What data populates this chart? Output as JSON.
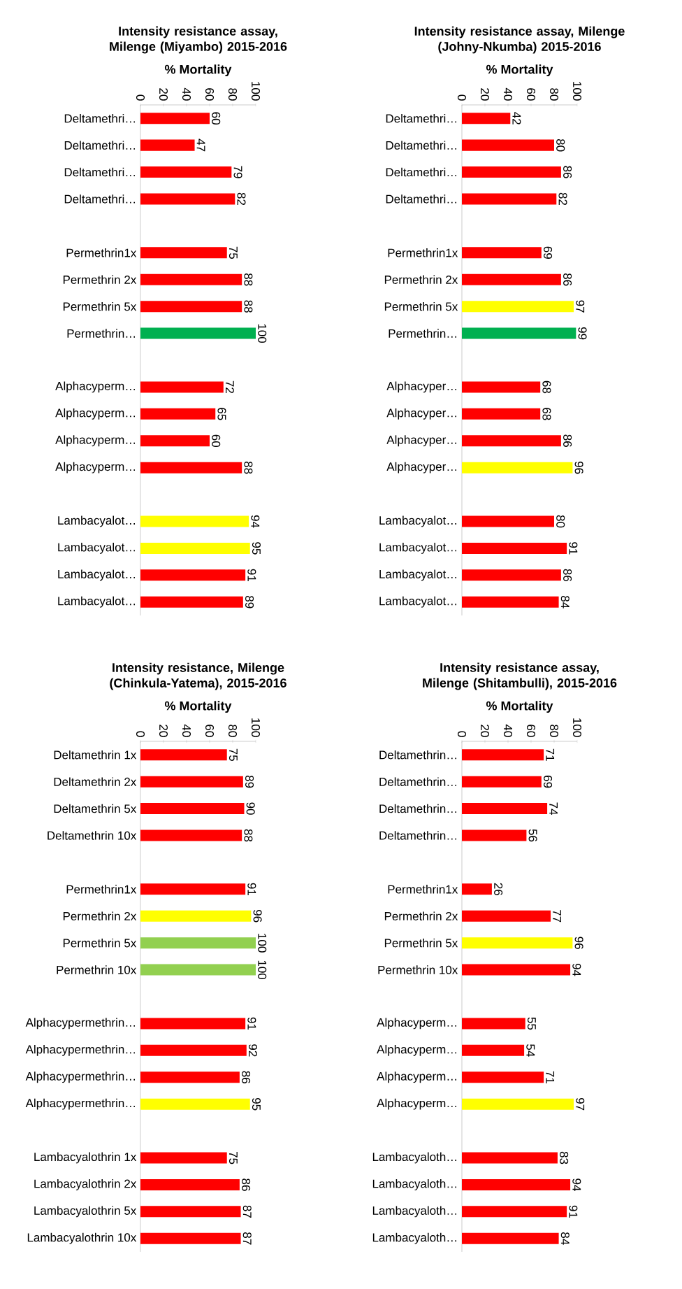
{
  "chart_data": [
    {
      "type": "bar",
      "orientation": "horizontal",
      "title": "Intensity resistance assay, Milenge (Miyambo) 2015-2016",
      "xlabel": "% Mortality",
      "categories": [
        "Deltamethri…",
        "Deltamethri…",
        "Deltamethri…",
        "Deltamethri…",
        null,
        "Permethrin1x",
        "Permethrin 2x",
        "Permethrin 5x",
        "Permethrin…",
        null,
        "Alphacyperm…",
        "Alphacyperm…",
        "Alphacyperm…",
        "Alphacyperm…",
        null,
        "Lambacyalot…",
        "Lambacyalot…",
        "Lambacyalot…",
        "Lambacyalot…"
      ],
      "values": [
        60,
        47,
        79,
        82,
        null,
        75,
        88,
        88,
        100,
        null,
        72,
        65,
        60,
        88,
        null,
        94,
        95,
        91,
        89
      ],
      "colors": [
        "#ff0000",
        "#ff0000",
        "#ff0000",
        "#ff0000",
        "#ff0000",
        "#ff0000",
        "#ff0000",
        "#ff0000",
        "#00b050",
        "#ff0000",
        "#ff0000",
        "#ff0000",
        "#ff0000",
        "#ff0000",
        "#ff0000",
        "#ffff00",
        "#ffff00",
        "#ff0000",
        "#ff0000"
      ],
      "xlim": [
        0,
        100
      ],
      "xticks": [
        0,
        20,
        40,
        60,
        80,
        100
      ],
      "data_labels": true
    },
    {
      "type": "bar",
      "orientation": "horizontal",
      "title": "Intensity resistance assay, Milenge (Johny-Nkumba) 2015-2016",
      "xlabel": "% Mortality",
      "categories": [
        "Deltamethri…",
        "Deltamethri…",
        "Deltamethri…",
        "Deltamethri…",
        null,
        "Permethrin1x",
        "Permethrin 2x",
        "Permethrin 5x",
        "Permethrin…",
        null,
        "Alphacyper…",
        "Alphacyper…",
        "Alphacyper…",
        "Alphacyper…",
        null,
        "Lambacyalot…",
        "Lambacyalot…",
        "Lambacyalot…",
        "Lambacyalot…"
      ],
      "values": [
        42,
        80,
        86,
        82,
        null,
        69,
        86,
        97,
        99,
        null,
        68,
        68,
        86,
        96,
        null,
        80,
        91,
        86,
        84
      ],
      "colors": [
        "#ff0000",
        "#ff0000",
        "#ff0000",
        "#ff0000",
        "#ff0000",
        "#ff0000",
        "#ff0000",
        "#ffff00",
        "#00b050",
        "#ff0000",
        "#ff0000",
        "#ff0000",
        "#ff0000",
        "#ffff00",
        "#ff0000",
        "#ff0000",
        "#ff0000",
        "#ff0000",
        "#ff0000"
      ],
      "xlim": [
        0,
        100
      ],
      "xticks": [
        0,
        20,
        40,
        60,
        80,
        100
      ],
      "data_labels": true
    },
    {
      "type": "bar",
      "orientation": "horizontal",
      "title": "Intensity resistance, Milenge (Chinkula-Yatema), 2015-2016",
      "xlabel": "% Mortality",
      "categories": [
        "Deltamethrin 1x",
        "Deltamethrin 2x",
        "Deltamethrin 5x",
        "Deltamethrin 10x",
        null,
        "Permethrin1x",
        "Permethrin 2x",
        "Permethrin 5x",
        "Permethrin 10x",
        null,
        "Alphacypermethrin…",
        "Alphacypermethrin…",
        "Alphacypermethrin…",
        "Alphacypermethrin…",
        null,
        "Lambacyalothrin 1x",
        "Lambacyalothrin 2x",
        "Lambacyalothrin 5x",
        "Lambacyalothrin 10x"
      ],
      "values": [
        75,
        89,
        90,
        88,
        null,
        91,
        96,
        100,
        100,
        null,
        91,
        92,
        86,
        95,
        null,
        75,
        86,
        87,
        87
      ],
      "colors": [
        "#ff0000",
        "#ff0000",
        "#ff0000",
        "#ff0000",
        "#ff0000",
        "#ff0000",
        "#ffff00",
        "#92d050",
        "#92d050",
        "#ff0000",
        "#ff0000",
        "#ff0000",
        "#ff0000",
        "#ffff00",
        "#ff0000",
        "#ff0000",
        "#ff0000",
        "#ff0000",
        "#ff0000"
      ],
      "xlim": [
        0,
        100
      ],
      "xticks": [
        0,
        20,
        40,
        60,
        80,
        100
      ],
      "data_labels": true
    },
    {
      "type": "bar",
      "orientation": "horizontal",
      "title": "Intensity resistance assay, Milenge (Shitambulli), 2015-2016",
      "xlabel": "% Mortality",
      "categories": [
        "Deltamethrin…",
        "Deltamethrin…",
        "Deltamethrin…",
        "Deltamethrin…",
        null,
        "Permethrin1x",
        "Permethrin 2x",
        "Permethrin 5x",
        "Permethrin 10x",
        null,
        "Alphacyperm…",
        "Alphacyperm…",
        "Alphacyperm…",
        "Alphacyperm…",
        null,
        "Lambacyaloth…",
        "Lambacyaloth…",
        "Lambacyaloth…",
        "Lambacyaloth…"
      ],
      "values": [
        71,
        69,
        74,
        56,
        null,
        26,
        77,
        96,
        94,
        null,
        55,
        54,
        71,
        97,
        null,
        83,
        94,
        91,
        84
      ],
      "colors": [
        "#ff0000",
        "#ff0000",
        "#ff0000",
        "#ff0000",
        "#ff0000",
        "#ff0000",
        "#ff0000",
        "#ffff00",
        "#ff0000",
        "#ff0000",
        "#ff0000",
        "#ff0000",
        "#ff0000",
        "#ffff00",
        "#ff0000",
        "#ff0000",
        "#ff0000",
        "#ff0000",
        "#ff0000"
      ],
      "xlim": [
        0,
        100
      ],
      "xticks": [
        0,
        20,
        40,
        60,
        80,
        100
      ],
      "data_labels": true
    }
  ]
}
